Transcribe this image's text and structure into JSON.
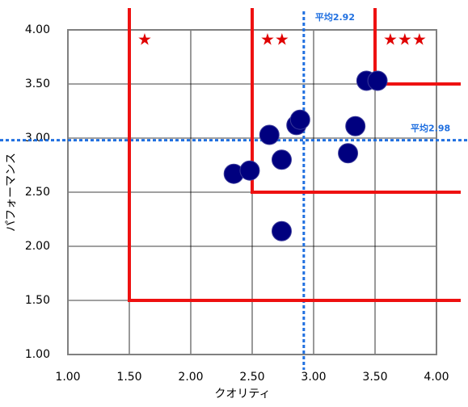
{
  "chart_data": {
    "type": "scatter",
    "x_label": "クオリティ",
    "y_label": "パフォーマンス",
    "xlim": [
      1,
      4
    ],
    "ylim": [
      1,
      4
    ],
    "xticks": [
      {
        "value": 1,
        "label": "1.00"
      },
      {
        "value": 1.5,
        "label": "1.50"
      },
      {
        "value": 2,
        "label": "2.00"
      },
      {
        "value": 2.5,
        "label": "2.50"
      },
      {
        "value": 3,
        "label": "3.00"
      },
      {
        "value": 3.5,
        "label": "3.50"
      },
      {
        "value": 4,
        "label": "4.00"
      }
    ],
    "yticks": [
      {
        "value": 1,
        "label": "1.00"
      },
      {
        "value": 1.5,
        "label": "1.50"
      },
      {
        "value": 2,
        "label": "2.00"
      },
      {
        "value": 2.5,
        "label": "2.50"
      },
      {
        "value": 3,
        "label": "3.00"
      },
      {
        "value": 3.5,
        "label": "3.50"
      },
      {
        "value": 4,
        "label": "4.00"
      }
    ],
    "grid": true,
    "color": "#00007f",
    "x": [
      2.35,
      2.48,
      2.64,
      2.74,
      2.74,
      2.86,
      2.89,
      3.28,
      3.34,
      3.43,
      3.52
    ],
    "values": [
      2.67,
      2.7,
      3.03,
      2.8,
      2.14,
      3.12,
      3.17,
      2.86,
      3.11,
      3.53,
      3.53
    ],
    "x_average": {
      "value": 2.92,
      "label": "平均2.92"
    },
    "y_average": {
      "value": 2.98,
      "label": "平均2.98"
    },
    "average_color": "#1f6fe0",
    "regions": [
      {
        "threshold": 1.5,
        "label": "★"
      },
      {
        "threshold": 2.5,
        "label": "★★"
      },
      {
        "threshold": 3.5,
        "label": "★★★"
      }
    ],
    "region_color": "#ee1111"
  }
}
